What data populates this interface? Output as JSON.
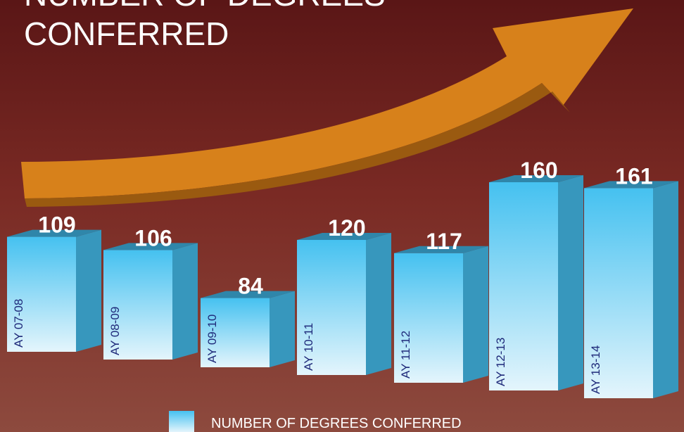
{
  "chart_data": {
    "type": "bar",
    "title": [
      "NUMBER OF DEGREES",
      "CONFERRED"
    ],
    "categories": [
      "AY 07-08",
      "AY 08-09",
      "AY 09-10",
      "AY 10-11",
      "AY 11-12",
      "AY 12-13",
      "AY 13-14"
    ],
    "series": [
      {
        "name": "NUMBER OF DEGREES CONFERRED",
        "color": "#4cc4f0",
        "values": [
          109,
          106,
          84,
          120,
          117,
          160,
          161
        ]
      }
    ],
    "legend": "bottom"
  }
}
